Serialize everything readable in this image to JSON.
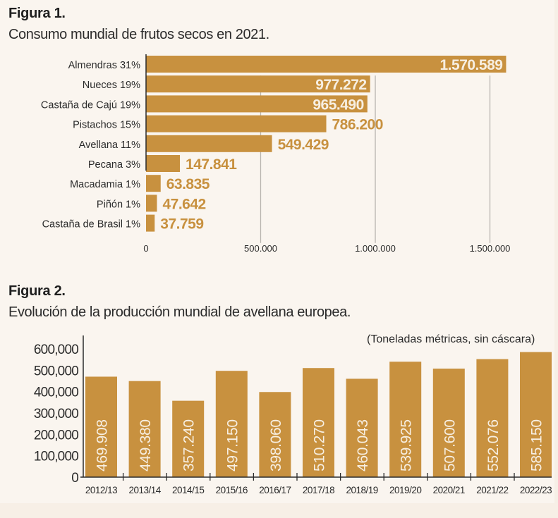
{
  "colors": {
    "bar": "#c8913f",
    "bar_label_inside": "#f7efe2",
    "bar_label_outside": "#c8913f",
    "axis": "#2b2b2b",
    "grid": "#b8b4ae",
    "background": "#faf5ef",
    "text": "#2b2b2b"
  },
  "figure1": {
    "title": "Figura 1.",
    "subtitle": "Consumo mundial de frutos secos en 2021."
  },
  "figure2": {
    "title": "Figura 2.",
    "subtitle": "Evolución de la producción mundial de avellana europea.",
    "unit_note": "(Toneladas métricas, sin cáscara)"
  },
  "chart_data": [
    {
      "type": "bar",
      "orientation": "horizontal",
      "title": "Consumo mundial de frutos secos en 2021.",
      "categories": [
        "Almendras 31%",
        "Nueces 19%",
        "Castaña de Cajú 19%",
        "Pistachos 15%",
        "Avellana 11%",
        "Pecana 3%",
        "Macadamia 1%",
        "Piñón 1%",
        "Castaña de Brasil 1%"
      ],
      "values": [
        1570589,
        977272,
        965490,
        786200,
        549429,
        147841,
        63835,
        47642,
        37759
      ],
      "value_labels": [
        "1.570.589",
        "977.272",
        "965.490",
        "786.200",
        "549.429",
        "147.841",
        "63.835",
        "47.642",
        "37.759"
      ],
      "label_inside": [
        true,
        true,
        true,
        false,
        false,
        false,
        false,
        false,
        false
      ],
      "xlim": [
        0,
        1700000
      ],
      "xticks": [
        0,
        500000,
        1000000,
        1500000
      ],
      "xtick_labels": [
        "0",
        "500.000",
        "1.000.000",
        "1.500.000"
      ],
      "grid": true,
      "xlabel": "",
      "ylabel": ""
    },
    {
      "type": "bar",
      "orientation": "vertical",
      "title": "Evolución de la producción mundial de avellana europea.",
      "annotation": "(Toneladas métricas, sin cáscara)",
      "categories": [
        "2012/13",
        "2013/14",
        "2014/15",
        "2015/16",
        "2016/17",
        "2017/18",
        "2018/19",
        "2019/20",
        "2020/21",
        "2021/22",
        "2022/23"
      ],
      "values": [
        469908,
        449380,
        357240,
        497150,
        398060,
        510270,
        460043,
        539925,
        507600,
        552076,
        585150
      ],
      "value_labels": [
        "469.908",
        "449.380",
        "357.240",
        "497.150",
        "398.060",
        "510.270",
        "460.043",
        "539.925",
        "507.600",
        "552.076",
        "585.150"
      ],
      "ylim": [
        0,
        650000
      ],
      "yticks": [
        0,
        100000,
        200000,
        300000,
        400000,
        500000,
        600000
      ],
      "ytick_labels": [
        "0",
        "100,000",
        "200,000",
        "300,000",
        "400,000",
        "500,000",
        "600,000"
      ],
      "grid": false,
      "xlabel": "",
      "ylabel": ""
    }
  ]
}
